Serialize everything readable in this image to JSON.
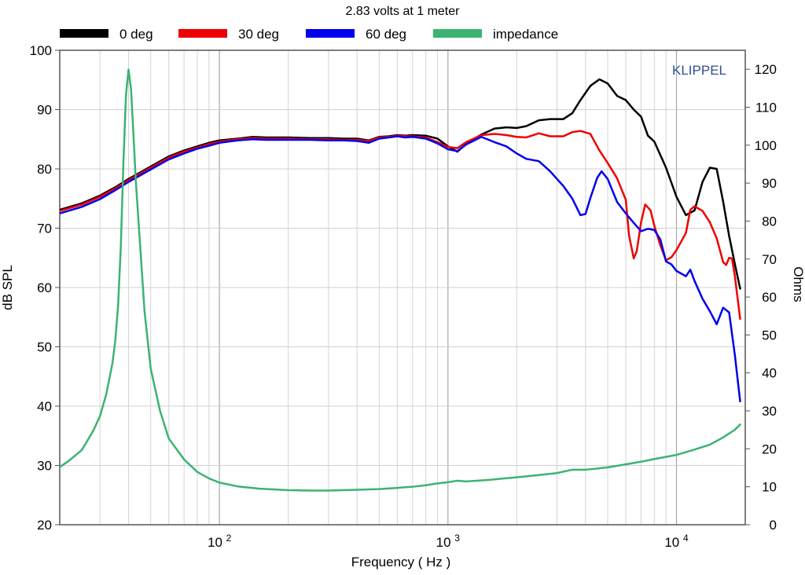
{
  "chart_data": {
    "type": "line",
    "title": "2.83 volts at 1 meter",
    "xlabel": "Frequency ( Hz )",
    "ylabel": "dB SPL",
    "y2label": "Ohms",
    "watermark": "KLIPPEL",
    "x_scale": "log",
    "xlim": [
      20,
      20000
    ],
    "ylim": [
      20,
      100
    ],
    "y2lim": [
      0,
      125
    ],
    "x_ticks": [
      {
        "value": 100,
        "base": "10",
        "exp": "2"
      },
      {
        "value": 1000,
        "base": "10",
        "exp": "3"
      },
      {
        "value": 10000,
        "base": "10",
        "exp": "4"
      }
    ],
    "y_ticks": [
      "20",
      "30",
      "40",
      "50",
      "60",
      "70",
      "80",
      "90",
      "100"
    ],
    "y2_ticks": [
      "0",
      "10",
      "20",
      "30",
      "40",
      "50",
      "60",
      "70",
      "80",
      "90",
      "100",
      "110",
      "120"
    ],
    "grid": true,
    "legend_position": "top",
    "series": [
      {
        "name": "0 deg",
        "color": "#000000",
        "axis": "left",
        "points": [
          [
            20,
            73.1
          ],
          [
            25,
            74.2
          ],
          [
            30,
            75.5
          ],
          [
            35,
            76.9
          ],
          [
            40,
            78.3
          ],
          [
            45,
            79.4
          ],
          [
            50,
            80.4
          ],
          [
            60,
            82.1
          ],
          [
            70,
            83.1
          ],
          [
            80,
            83.8
          ],
          [
            90,
            84.4
          ],
          [
            100,
            84.8
          ],
          [
            120,
            85.1
          ],
          [
            140,
            85.4
          ],
          [
            160,
            85.3
          ],
          [
            200,
            85.3
          ],
          [
            250,
            85.2
          ],
          [
            300,
            85.2
          ],
          [
            350,
            85.1
          ],
          [
            400,
            85.1
          ],
          [
            450,
            84.8
          ],
          [
            500,
            85.4
          ],
          [
            550,
            85.5
          ],
          [
            600,
            85.7
          ],
          [
            650,
            85.6
          ],
          [
            700,
            85.7
          ],
          [
            800,
            85.6
          ],
          [
            900,
            85.1
          ],
          [
            1000,
            83.8
          ],
          [
            1100,
            82.9
          ],
          [
            1200,
            84.2
          ],
          [
            1400,
            85.8
          ],
          [
            1600,
            86.8
          ],
          [
            1800,
            87.0
          ],
          [
            2000,
            86.9
          ],
          [
            2200,
            87.2
          ],
          [
            2500,
            88.2
          ],
          [
            2800,
            88.4
          ],
          [
            3200,
            88.4
          ],
          [
            3500,
            89.4
          ],
          [
            3800,
            91.6
          ],
          [
            4200,
            94.0
          ],
          [
            4600,
            95.1
          ],
          [
            5000,
            94.4
          ],
          [
            5500,
            92.3
          ],
          [
            6000,
            91.6
          ],
          [
            6500,
            90.0
          ],
          [
            7000,
            88.8
          ],
          [
            7500,
            85.6
          ],
          [
            8000,
            84.6
          ],
          [
            9000,
            80.2
          ],
          [
            10000,
            75.3
          ],
          [
            11000,
            72.2
          ],
          [
            12000,
            73.0
          ],
          [
            13000,
            77.8
          ],
          [
            14000,
            80.2
          ],
          [
            15000,
            80.0
          ],
          [
            16000,
            74.5
          ],
          [
            17000,
            68.7
          ],
          [
            18000,
            64.0
          ],
          [
            19000,
            59.8
          ]
        ]
      },
      {
        "name": "30 deg",
        "color": "#ee0000",
        "axis": "left",
        "points": [
          [
            20,
            72.9
          ],
          [
            25,
            74.0
          ],
          [
            30,
            75.3
          ],
          [
            35,
            76.7
          ],
          [
            40,
            78.1
          ],
          [
            45,
            79.2
          ],
          [
            50,
            80.2
          ],
          [
            60,
            81.9
          ],
          [
            70,
            82.9
          ],
          [
            80,
            83.6
          ],
          [
            90,
            84.2
          ],
          [
            100,
            84.6
          ],
          [
            120,
            85.0
          ],
          [
            140,
            85.2
          ],
          [
            160,
            85.1
          ],
          [
            200,
            85.1
          ],
          [
            250,
            85.0
          ],
          [
            300,
            85.0
          ],
          [
            350,
            84.9
          ],
          [
            400,
            84.9
          ],
          [
            450,
            84.7
          ],
          [
            500,
            85.3
          ],
          [
            550,
            85.4
          ],
          [
            600,
            85.6
          ],
          [
            650,
            85.5
          ],
          [
            700,
            85.5
          ],
          [
            800,
            85.3
          ],
          [
            900,
            84.5
          ],
          [
            1000,
            83.7
          ],
          [
            1100,
            83.5
          ],
          [
            1200,
            84.5
          ],
          [
            1400,
            85.7
          ],
          [
            1600,
            85.9
          ],
          [
            1800,
            85.7
          ],
          [
            2000,
            85.4
          ],
          [
            2200,
            85.3
          ],
          [
            2500,
            86.0
          ],
          [
            2800,
            85.5
          ],
          [
            3200,
            85.5
          ],
          [
            3500,
            86.2
          ],
          [
            3800,
            86.4
          ],
          [
            4200,
            85.9
          ],
          [
            4600,
            83.1
          ],
          [
            5000,
            81.0
          ],
          [
            5500,
            78.4
          ],
          [
            6000,
            74.8
          ],
          [
            6200,
            68.8
          ],
          [
            6500,
            64.9
          ],
          [
            6700,
            66.1
          ],
          [
            7000,
            71.0
          ],
          [
            7300,
            74.0
          ],
          [
            7700,
            73.0
          ],
          [
            8000,
            70.4
          ],
          [
            8500,
            67.1
          ],
          [
            9000,
            64.6
          ],
          [
            9500,
            65.1
          ],
          [
            10000,
            66.3
          ],
          [
            11000,
            69.2
          ],
          [
            11500,
            73.1
          ],
          [
            12000,
            73.7
          ],
          [
            13000,
            72.9
          ],
          [
            14000,
            71.0
          ],
          [
            15000,
            68.3
          ],
          [
            16000,
            64.3
          ],
          [
            16500,
            63.8
          ],
          [
            17000,
            65.0
          ],
          [
            17500,
            64.9
          ],
          [
            18000,
            62.0
          ],
          [
            19000,
            54.7
          ]
        ]
      },
      {
        "name": "60 deg",
        "color": "#0000ee",
        "axis": "left",
        "points": [
          [
            20,
            72.5
          ],
          [
            25,
            73.6
          ],
          [
            30,
            74.9
          ],
          [
            35,
            76.4
          ],
          [
            40,
            77.8
          ],
          [
            45,
            78.9
          ],
          [
            50,
            79.9
          ],
          [
            60,
            81.6
          ],
          [
            70,
            82.6
          ],
          [
            80,
            83.4
          ],
          [
            90,
            83.9
          ],
          [
            100,
            84.4
          ],
          [
            120,
            84.8
          ],
          [
            140,
            85.0
          ],
          [
            160,
            84.9
          ],
          [
            200,
            84.9
          ],
          [
            250,
            84.9
          ],
          [
            300,
            84.8
          ],
          [
            350,
            84.8
          ],
          [
            400,
            84.7
          ],
          [
            450,
            84.4
          ],
          [
            500,
            85.1
          ],
          [
            550,
            85.3
          ],
          [
            600,
            85.5
          ],
          [
            650,
            85.3
          ],
          [
            700,
            85.4
          ],
          [
            800,
            85.1
          ],
          [
            900,
            84.3
          ],
          [
            1000,
            83.3
          ],
          [
            1100,
            83.0
          ],
          [
            1200,
            84.1
          ],
          [
            1400,
            85.4
          ],
          [
            1600,
            84.5
          ],
          [
            1800,
            83.8
          ],
          [
            2000,
            82.6
          ],
          [
            2200,
            81.7
          ],
          [
            2500,
            81.3
          ],
          [
            2800,
            79.6
          ],
          [
            3200,
            77.1
          ],
          [
            3500,
            75.0
          ],
          [
            3800,
            72.2
          ],
          [
            4000,
            72.4
          ],
          [
            4200,
            75.1
          ],
          [
            4500,
            78.5
          ],
          [
            4700,
            79.6
          ],
          [
            5000,
            78.3
          ],
          [
            5500,
            74.4
          ],
          [
            6000,
            72.5
          ],
          [
            6500,
            70.9
          ],
          [
            7000,
            69.5
          ],
          [
            7500,
            69.9
          ],
          [
            8000,
            69.7
          ],
          [
            8500,
            68.1
          ],
          [
            9000,
            64.4
          ],
          [
            9500,
            63.9
          ],
          [
            10000,
            62.8
          ],
          [
            11000,
            61.9
          ],
          [
            11500,
            63.0
          ],
          [
            12000,
            61.1
          ],
          [
            13000,
            58.1
          ],
          [
            14000,
            56.0
          ],
          [
            15000,
            53.8
          ],
          [
            16000,
            56.6
          ],
          [
            17000,
            55.8
          ],
          [
            17500,
            52.2
          ],
          [
            18000,
            48.7
          ],
          [
            19000,
            40.8
          ]
        ]
      },
      {
        "name": "impedance",
        "color": "#3cb371",
        "axis": "right",
        "points": [
          [
            20,
            15.2
          ],
          [
            22,
            16.9
          ],
          [
            25,
            19.7
          ],
          [
            28,
            24.7
          ],
          [
            30,
            28.6
          ],
          [
            32,
            34.5
          ],
          [
            34,
            42.5
          ],
          [
            35,
            48.5
          ],
          [
            36,
            57.6
          ],
          [
            37,
            73.2
          ],
          [
            38,
            95.6
          ],
          [
            39,
            113.5
          ],
          [
            40,
            119.9
          ],
          [
            41,
            114.9
          ],
          [
            42,
            103.3
          ],
          [
            43,
            91.0
          ],
          [
            45,
            73.2
          ],
          [
            47,
            56.2
          ],
          [
            50,
            41.2
          ],
          [
            55,
            29.9
          ],
          [
            60,
            22.7
          ],
          [
            70,
            17.2
          ],
          [
            80,
            13.9
          ],
          [
            90,
            12.2
          ],
          [
            100,
            11.1
          ],
          [
            120,
            10.1
          ],
          [
            150,
            9.5
          ],
          [
            200,
            9.1
          ],
          [
            250,
            9.0
          ],
          [
            300,
            9.0
          ],
          [
            400,
            9.2
          ],
          [
            500,
            9.4
          ],
          [
            600,
            9.7
          ],
          [
            700,
            10.0
          ],
          [
            800,
            10.4
          ],
          [
            900,
            10.9
          ],
          [
            1000,
            11.2
          ],
          [
            1100,
            11.6
          ],
          [
            1200,
            11.4
          ],
          [
            1500,
            11.8
          ],
          [
            2000,
            12.5
          ],
          [
            2500,
            13.1
          ],
          [
            3000,
            13.6
          ],
          [
            3500,
            14.5
          ],
          [
            4000,
            14.5
          ],
          [
            5000,
            15.1
          ],
          [
            6000,
            15.9
          ],
          [
            7000,
            16.6
          ],
          [
            8000,
            17.3
          ],
          [
            10000,
            18.4
          ],
          [
            12000,
            19.8
          ],
          [
            14000,
            21.1
          ],
          [
            16000,
            23.0
          ],
          [
            18000,
            25.0
          ],
          [
            19000,
            26.4
          ]
        ]
      }
    ]
  }
}
